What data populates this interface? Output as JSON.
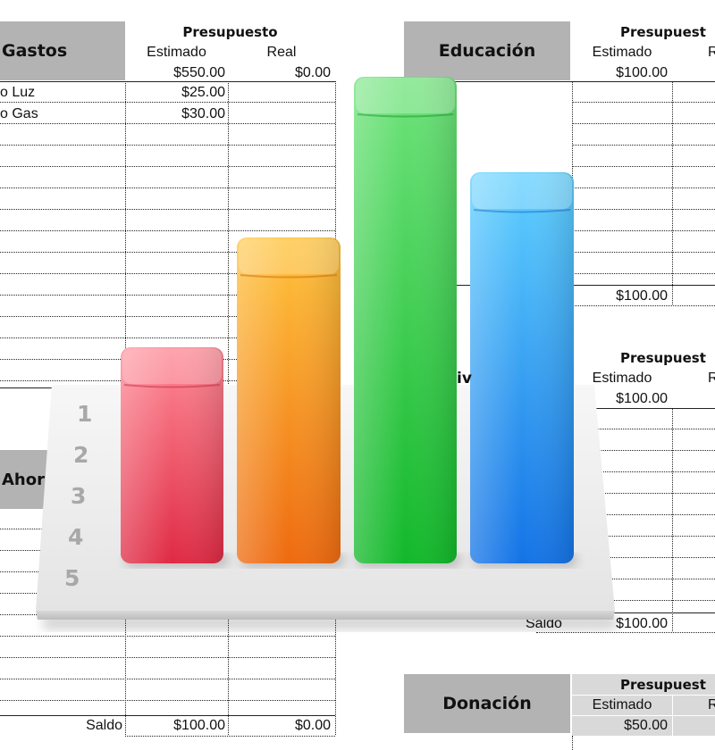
{
  "left_sheet": {
    "title": "Gastos",
    "budget_heading": "Presupuesto",
    "col_estimated": "Estimado",
    "col_real": "Real",
    "total_estimated": "$550.00",
    "total_real": "$0.00",
    "rows": [
      {
        "item": "o Luz",
        "estimated": "$25.00"
      },
      {
        "item": "o Gas",
        "estimated": "$30.00"
      }
    ],
    "second_title": "Ahor",
    "saldo_label": "Saldo",
    "saldo_estimated": "$100.00",
    "saldo_real": "$0.00"
  },
  "right_sheet": {
    "education": {
      "title": "Educación",
      "budget_heading": "Presupuest",
      "col_estimated": "Estimado",
      "col_real_partial": "R",
      "value": "$100.00",
      "total": "$100.00"
    },
    "middle": {
      "title_partial": "iv",
      "budget_heading": "Presupuest",
      "col_estimated": "Estimado",
      "col_real_partial": "R",
      "value": "$100.00",
      "saldo_partial": "Saldo",
      "saldo_value": "$100.00"
    },
    "donation": {
      "title": "Donación",
      "budget_heading": "Presupuest",
      "col_estimated": "Estimado",
      "col_real_partial": "R",
      "value": "$50.00"
    }
  },
  "chart_icon": {
    "icon": "bar-chart-icon",
    "tick_labels": [
      "1",
      "2",
      "3",
      "4",
      "5"
    ],
    "bars": [
      {
        "color_top": "#ff8a96",
        "color_bottom": "#df2a43"
      },
      {
        "color_top": "#ffc43d",
        "color_bottom": "#ee6a0f"
      },
      {
        "color_top": "#6ee37a",
        "color_bottom": "#12b82a"
      },
      {
        "color_top": "#5fd0ff",
        "color_bottom": "#1373e6"
      }
    ]
  }
}
